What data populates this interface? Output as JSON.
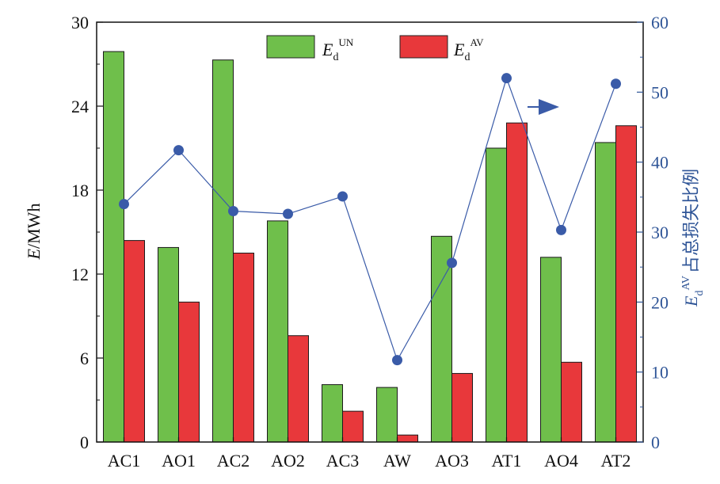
{
  "chart_data": {
    "type": "bar",
    "categories": [
      "AC1",
      "AO1",
      "AC2",
      "AO2",
      "AC3",
      "AW",
      "AO3",
      "AT1",
      "AO4",
      "AT2"
    ],
    "series": [
      {
        "name": "E_d^UN",
        "axis": "left",
        "color": "#6fbf4b",
        "values": [
          27.9,
          13.9,
          27.3,
          15.8,
          4.1,
          3.9,
          14.7,
          21.0,
          13.2,
          21.4
        ]
      },
      {
        "name": "E_d^AV",
        "axis": "left",
        "color": "#e8383b",
        "values": [
          14.4,
          10.0,
          13.5,
          7.6,
          2.2,
          0.5,
          4.9,
          22.8,
          5.7,
          22.6
        ]
      },
      {
        "name": "E_d^AV 占总损失比例",
        "axis": "right",
        "type": "line",
        "color": "#3a5ba8",
        "values": [
          34.0,
          41.7,
          33.0,
          32.6,
          35.1,
          11.7,
          25.6,
          52.0,
          30.3,
          51.2
        ]
      }
    ],
    "y_left": {
      "label_italic": "E",
      "label_rest": "/MWh",
      "ylim": [
        0,
        30
      ],
      "ticks": [
        "0",
        "6",
        "12",
        "18",
        "24",
        "30"
      ]
    },
    "y_right": {
      "label_sym": "E",
      "label_sub": "d",
      "label_sup": "AV",
      "label_text": "占总损失比例",
      "ylim": [
        0,
        60
      ],
      "ticks": [
        "0",
        "10",
        "20",
        "30",
        "40",
        "50",
        "60"
      ]
    },
    "legend": {
      "placement": "top-center",
      "items": [
        {
          "sym": "E",
          "sub": "d",
          "sup": "UN",
          "color": "#6fbf4b"
        },
        {
          "sym": "E",
          "sub": "d",
          "sup": "AV",
          "color": "#e8383b"
        }
      ]
    },
    "annotation": {
      "type": "arrow",
      "direction": "right",
      "points_to": "right-axis",
      "color": "#3a5ba8"
    },
    "grid": false
  }
}
